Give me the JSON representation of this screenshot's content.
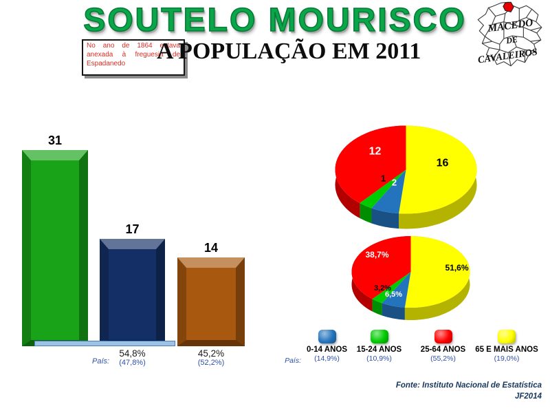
{
  "header": {
    "title": "SOUTELO MOURISCO",
    "subtitle": "A POPULAÇÃO EM 2011",
    "note": "No ano de 1864 estava anexada à freguesia de Espadanedo",
    "logo_lines": [
      "MACEDO",
      "DE",
      "CAVALEIROS"
    ]
  },
  "chart_data": [
    {
      "type": "bar",
      "values": [
        31,
        17,
        14
      ],
      "value_labels": [
        "31",
        "17",
        "14"
      ],
      "pct_labels": [
        null,
        "54,8%",
        "45,2%"
      ],
      "pais_label": "País:",
      "pais_values": [
        null,
        "(47,8%)",
        "(52,2%)"
      ],
      "ylim": [
        0,
        31
      ]
    },
    {
      "type": "pie",
      "categories": [
        "0-14 ANOS",
        "15-24 ANOS",
        "25-64 ANOS",
        "65 E MAIS ANOS"
      ],
      "values": [
        2,
        1,
        12,
        16
      ],
      "labels": [
        "2",
        "1",
        "12",
        "16"
      ]
    },
    {
      "type": "pie",
      "categories": [
        "0-14 ANOS",
        "15-24 ANOS",
        "25-64 ANOS",
        "65 E MAIS ANOS"
      ],
      "values": [
        6.5,
        3.2,
        38.7,
        51.6
      ],
      "labels": [
        "6,5%",
        "3,2%",
        "38,7%",
        "51,6%"
      ]
    }
  ],
  "legend": {
    "pais_label": "País:",
    "items": [
      {
        "label": "0-14 ANOS",
        "pais": "(14,9%)",
        "color": "#2374BD"
      },
      {
        "label": "15-24 ANOS",
        "pais": "(10,9%)",
        "color": "#00CB00"
      },
      {
        "label": "25-64 ANOS",
        "pais": "(55,2%)",
        "color": "#FE0000"
      },
      {
        "label": "65 E MAIS ANOS",
        "pais": "(19,0%)",
        "color": "#FFFF00"
      }
    ]
  },
  "footer": {
    "fonte": "Fonte: Instituto Nacional de Estatística",
    "credit": "JF2014"
  },
  "colors": {
    "title_green": "#0BA64A",
    "note_red": "#DD2A22",
    "bar_faces": [
      "#18A318",
      "#142F66",
      "#A8590F"
    ],
    "strip_blue": "#9CC2E5",
    "pie_colors": [
      "#2374BD",
      "#00CB00",
      "#FE0000",
      "#FFFF00"
    ],
    "pie_label_colors": [
      "#FFFFFF",
      "#000000",
      "#FFFFFF",
      "#000000"
    ],
    "pais_text_blue": "#2E4FA8",
    "footer_blue": "#17375E"
  }
}
